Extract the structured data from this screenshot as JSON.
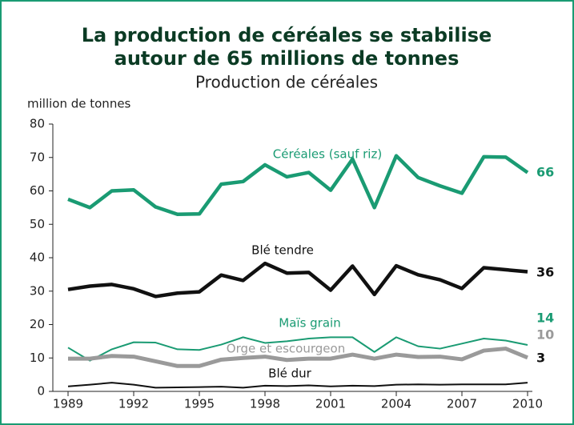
{
  "chart_data": {
    "type": "line",
    "title": [
      "La production de céréales se stabilise",
      "autour de 65 millions de tonnes"
    ],
    "subtitle": "Production de céréales",
    "y_label": "million de tonnes",
    "x": [
      1989,
      1990,
      1991,
      1992,
      1993,
      1994,
      1995,
      1996,
      1997,
      1998,
      1999,
      2000,
      2001,
      2002,
      2003,
      2004,
      2005,
      2006,
      2007,
      2008,
      2009,
      2010
    ],
    "xlim": [
      1989,
      2010
    ],
    "xticks": [
      1989,
      1992,
      1995,
      1998,
      2001,
      2004,
      2007,
      2010
    ],
    "ylim": [
      0,
      80
    ],
    "yticks": [
      0,
      10,
      20,
      30,
      40,
      50,
      60,
      70,
      80
    ],
    "series": [
      {
        "name": "Céréales (sauf riz)",
        "color": "#1a9b73",
        "end_label": "66",
        "values": [
          57.5,
          55,
          60,
          60.3,
          55.2,
          53,
          53.1,
          62,
          62.8,
          67.8,
          64.2,
          65.5,
          60.2,
          69.5,
          55,
          70.5,
          64,
          61.5,
          59.3,
          70.2,
          70.1,
          65.5
        ]
      },
      {
        "name": "Blé tendre",
        "color": "#111111",
        "end_label": "36",
        "values": [
          30.5,
          31.5,
          32,
          30.7,
          28.4,
          29.4,
          29.8,
          34.8,
          33.2,
          38.3,
          35.4,
          35.6,
          30.3,
          37.5,
          29,
          37.6,
          34.9,
          33.4,
          30.8,
          37,
          36.4,
          35.8
        ]
      },
      {
        "name": "Maïs grain",
        "color": "#1a9b73",
        "end_label": "14",
        "values": [
          13.1,
          9.2,
          12.6,
          14.7,
          14.6,
          12.6,
          12.4,
          14,
          16.2,
          14.5,
          15,
          15.8,
          16.2,
          16.2,
          11.8,
          16.2,
          13.5,
          12.8,
          14.3,
          15.8,
          15.2,
          13.9
        ]
      },
      {
        "name": "Orge et escourgeon",
        "color": "#9a9a9a",
        "end_label": "10",
        "values": [
          9.8,
          9.8,
          10.6,
          10.4,
          9,
          7.6,
          7.6,
          9.5,
          10,
          10.4,
          9.4,
          9.8,
          9.8,
          11,
          9.8,
          11,
          10.3,
          10.4,
          9.6,
          12.2,
          12.8,
          10.1
        ]
      },
      {
        "name": "Blé dur",
        "color": "#111111",
        "end_label": "3",
        "values": [
          1.5,
          2,
          2.6,
          2,
          1.1,
          1.2,
          1.3,
          1.4,
          1.1,
          1.7,
          1.6,
          1.8,
          1.5,
          1.7,
          1.6,
          2,
          2.1,
          2,
          2.1,
          2.1,
          2.1,
          2.6
        ]
      }
    ]
  }
}
